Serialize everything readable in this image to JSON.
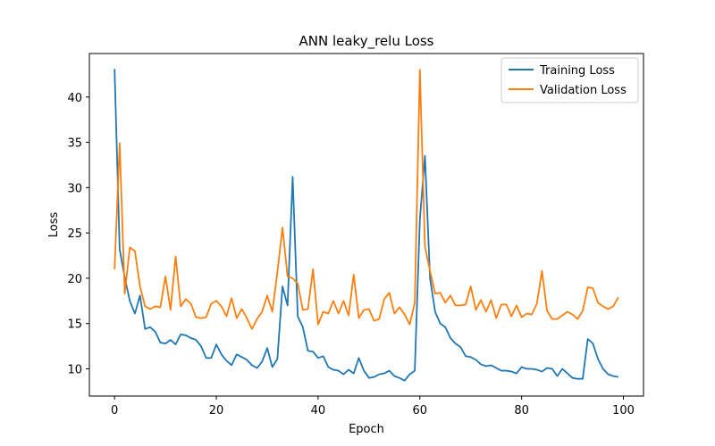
{
  "chart_data": {
    "type": "line",
    "title": "ANN leaky_relu Loss",
    "xlabel": "Epoch",
    "ylabel": "Loss",
    "xlim": [
      -4.95,
      103.95
    ],
    "ylim": [
      7.0,
      44.8
    ],
    "xticks": [
      0,
      20,
      40,
      60,
      80,
      100
    ],
    "yticks": [
      10,
      15,
      20,
      25,
      30,
      35,
      40
    ],
    "grid": false,
    "legend_position": "upper-right",
    "x": [
      0,
      1,
      2,
      3,
      4,
      5,
      6,
      7,
      8,
      9,
      10,
      11,
      12,
      13,
      14,
      15,
      16,
      17,
      18,
      19,
      20,
      21,
      22,
      23,
      24,
      25,
      26,
      27,
      28,
      29,
      30,
      31,
      32,
      33,
      34,
      35,
      36,
      37,
      38,
      39,
      40,
      41,
      42,
      43,
      44,
      45,
      46,
      47,
      48,
      49,
      50,
      51,
      52,
      53,
      54,
      55,
      56,
      57,
      58,
      59,
      60,
      61,
      62,
      63,
      64,
      65,
      66,
      67,
      68,
      69,
      70,
      71,
      72,
      73,
      74,
      75,
      76,
      77,
      78,
      79,
      80,
      81,
      82,
      83,
      84,
      85,
      86,
      87,
      88,
      89,
      90,
      91,
      92,
      93,
      94,
      95,
      96,
      97,
      98,
      99
    ],
    "series": [
      {
        "name": "Training Loss",
        "color": "#1f77b4",
        "values": [
          43.1,
          23.2,
          20.1,
          17.5,
          16.1,
          18.1,
          14.4,
          14.6,
          14.1,
          12.9,
          12.8,
          13.2,
          12.7,
          13.8,
          13.7,
          13.4,
          13.2,
          12.5,
          11.2,
          11.2,
          12.7,
          11.6,
          10.9,
          10.4,
          11.6,
          11.3,
          11.0,
          10.4,
          10.1,
          10.8,
          12.3,
          10.2,
          11.1,
          19.1,
          17.0,
          31.2,
          15.8,
          14.6,
          12.0,
          11.9,
          11.2,
          11.4,
          10.2,
          9.9,
          9.8,
          9.4,
          9.9,
          9.5,
          11.2,
          9.8,
          9.0,
          9.1,
          9.4,
          9.5,
          9.8,
          9.2,
          9.0,
          8.7,
          9.4,
          9.8,
          26.5,
          33.5,
          20.0,
          16.3,
          15.0,
          14.6,
          13.4,
          12.8,
          12.4,
          11.4,
          11.3,
          11.0,
          10.5,
          10.3,
          10.4,
          10.1,
          9.8,
          9.8,
          9.7,
          9.5,
          10.2,
          10.0,
          10.0,
          9.9,
          9.7,
          10.1,
          10.0,
          9.2,
          10.0,
          9.5,
          9.0,
          8.9,
          8.9,
          13.3,
          12.8,
          11.1,
          10.0,
          9.4,
          9.2,
          9.1
        ]
      },
      {
        "name": "Validation Loss",
        "color": "#ff7f0e",
        "values": [
          21.0,
          34.9,
          18.3,
          23.4,
          23.0,
          19.1,
          16.9,
          16.6,
          16.9,
          16.8,
          20.2,
          16.5,
          22.4,
          16.9,
          17.7,
          17.2,
          15.7,
          15.6,
          15.7,
          17.2,
          17.5,
          16.9,
          15.8,
          17.8,
          15.6,
          16.6,
          15.6,
          14.4,
          15.5,
          16.3,
          18.1,
          16.3,
          20.7,
          25.6,
          20.2,
          20.0,
          19.4,
          16.5,
          16.6,
          21.0,
          14.9,
          16.3,
          16.1,
          17.5,
          16.1,
          17.5,
          15.9,
          20.4,
          15.6,
          16.5,
          16.6,
          15.3,
          15.5,
          17.7,
          18.4,
          16.1,
          16.8,
          16.0,
          14.9,
          17.3,
          43.0,
          23.5,
          20.8,
          18.3,
          18.4,
          17.3,
          18.1,
          17.0,
          17.0,
          17.1,
          19.1,
          16.5,
          17.6,
          16.3,
          17.6,
          15.6,
          17.1,
          17.1,
          15.8,
          17.0,
          15.7,
          16.1,
          16.0,
          17.2,
          20.8,
          16.4,
          15.5,
          15.5,
          15.9,
          16.3,
          16.0,
          15.5,
          16.4,
          19.0,
          18.9,
          17.3,
          16.9,
          16.6,
          16.9,
          17.9
        ]
      }
    ]
  }
}
